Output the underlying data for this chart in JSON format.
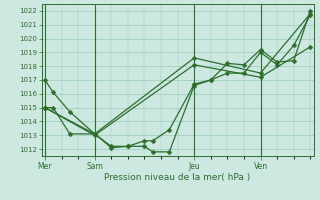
{
  "title": "Pression niveau de la mer( hPa )",
  "bg_color": "#cce8e0",
  "grid_color": "#99ccbb",
  "line_color": "#2d6e2d",
  "ylim": [
    1011.5,
    1022.5
  ],
  "day_labels": [
    "Mer",
    "Sam",
    "Jeu",
    "Ven"
  ],
  "day_positions": [
    0,
    3,
    9,
    13
  ],
  "yticks": [
    1012,
    1013,
    1014,
    1015,
    1016,
    1017,
    1018,
    1019,
    1020,
    1021,
    1022
  ],
  "series1_x": [
    0,
    0.5,
    1.5,
    3,
    4,
    5,
    6,
    6.5,
    7.5,
    9,
    10,
    11,
    12,
    13,
    14,
    15,
    16
  ],
  "series1_y": [
    1017.0,
    1016.1,
    1014.7,
    1013.1,
    1012.1,
    1012.2,
    1012.6,
    1012.6,
    1013.4,
    1016.7,
    1017.0,
    1017.5,
    1017.5,
    1019.0,
    1018.1,
    1019.5,
    1021.7
  ],
  "series2_x": [
    0,
    0.5,
    1.5,
    3,
    4,
    5,
    6,
    6.5,
    7.5,
    9,
    10,
    11,
    12,
    13,
    14,
    15,
    16
  ],
  "series2_y": [
    1015.0,
    1015.0,
    1013.1,
    1013.1,
    1012.2,
    1012.2,
    1012.2,
    1011.8,
    1011.8,
    1016.6,
    1017.0,
    1018.2,
    1018.1,
    1019.2,
    1018.3,
    1018.4,
    1022.0
  ],
  "series3_x": [
    0,
    3,
    9,
    13,
    16
  ],
  "series3_y": [
    1015.0,
    1013.1,
    1018.6,
    1017.5,
    1021.8
  ],
  "series4_x": [
    0,
    3,
    9,
    13,
    16
  ],
  "series4_y": [
    1015.0,
    1013.0,
    1018.1,
    1017.2,
    1019.4
  ],
  "xmax": 16
}
